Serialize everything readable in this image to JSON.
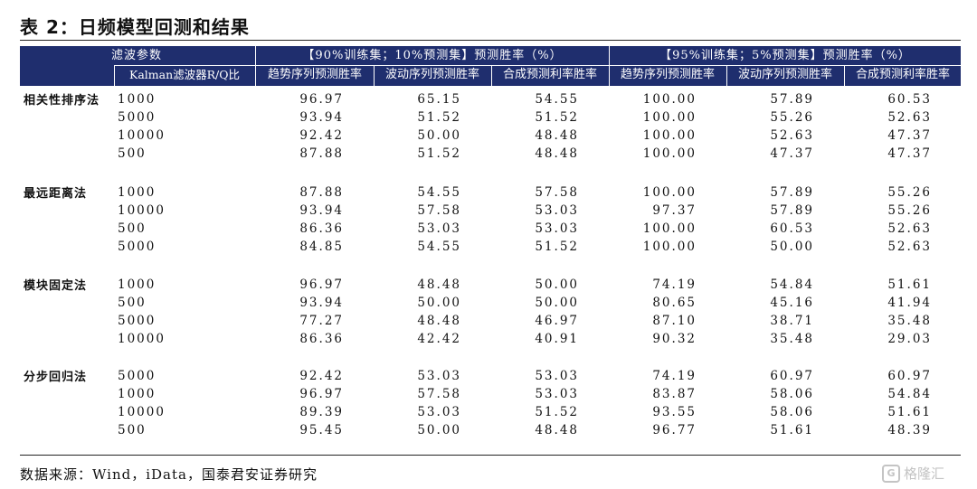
{
  "title": "表 2：日频模型回测和结果",
  "header": {
    "filter_param": "滤波参数",
    "filter_sub": "Kalman滤波器R/Q比",
    "group_90": "【90%训练集；10%预测集】预测胜率（%）",
    "group_95": "【95%训练集；5%预测集】预测胜率（%）",
    "columns": [
      "趋势序列预测胜率",
      "波动序列预测胜率",
      "合成预测利率胜率",
      "趋势序列预测胜率",
      "波动序列预测胜率",
      "合成预测利率胜率"
    ]
  },
  "groups": [
    {
      "label": "相关性排序法",
      "rows": [
        {
          "param": "1000",
          "v": [
            "96.97",
            "65.15",
            "54.55",
            "100.00",
            "57.89",
            "60.53"
          ]
        },
        {
          "param": "5000",
          "v": [
            "93.94",
            "51.52",
            "51.52",
            "100.00",
            "55.26",
            "52.63"
          ]
        },
        {
          "param": "10000",
          "v": [
            "92.42",
            "50.00",
            "48.48",
            "100.00",
            "52.63",
            "47.37"
          ]
        },
        {
          "param": "500",
          "v": [
            "87.88",
            "51.52",
            "48.48",
            "100.00",
            "47.37",
            "47.37"
          ]
        }
      ]
    },
    {
      "label": "最远距离法",
      "rows": [
        {
          "param": "1000",
          "v": [
            "87.88",
            "54.55",
            "57.58",
            "100.00",
            "57.89",
            "55.26"
          ]
        },
        {
          "param": "10000",
          "v": [
            "93.94",
            "57.58",
            "53.03",
            "97.37",
            "57.89",
            "55.26"
          ]
        },
        {
          "param": "500",
          "v": [
            "86.36",
            "53.03",
            "53.03",
            "100.00",
            "60.53",
            "52.63"
          ]
        },
        {
          "param": "5000",
          "v": [
            "84.85",
            "54.55",
            "51.52",
            "100.00",
            "50.00",
            "52.63"
          ]
        }
      ]
    },
    {
      "label": "模块固定法",
      "rows": [
        {
          "param": "1000",
          "v": [
            "96.97",
            "48.48",
            "50.00",
            "74.19",
            "54.84",
            "51.61"
          ]
        },
        {
          "param": "500",
          "v": [
            "93.94",
            "50.00",
            "50.00",
            "80.65",
            "45.16",
            "41.94"
          ]
        },
        {
          "param": "5000",
          "v": [
            "77.27",
            "48.48",
            "46.97",
            "87.10",
            "38.71",
            "35.48"
          ]
        },
        {
          "param": "10000",
          "v": [
            "86.36",
            "42.42",
            "40.91",
            "90.32",
            "35.48",
            "29.03"
          ]
        }
      ]
    },
    {
      "label": "分步回归法",
      "rows": [
        {
          "param": "5000",
          "v": [
            "92.42",
            "53.03",
            "53.03",
            "74.19",
            "60.97",
            "60.97"
          ]
        },
        {
          "param": "1000",
          "v": [
            "96.97",
            "57.58",
            "53.03",
            "83.87",
            "58.06",
            "54.84"
          ]
        },
        {
          "param": "10000",
          "v": [
            "89.39",
            "53.03",
            "51.52",
            "93.55",
            "58.06",
            "51.61"
          ]
        },
        {
          "param": "500",
          "v": [
            "95.45",
            "50.00",
            "48.48",
            "96.77",
            "51.61",
            "48.39"
          ]
        }
      ]
    }
  ],
  "source": "数据来源：Wind，iData，国泰君安证券研究",
  "watermark": {
    "mark": "G",
    "text": "格隆汇"
  },
  "colors": {
    "header_bg": "#1f2e6e",
    "header_text": "#ffffff",
    "rule": "#222222",
    "watermark": "#c4c4c4"
  }
}
